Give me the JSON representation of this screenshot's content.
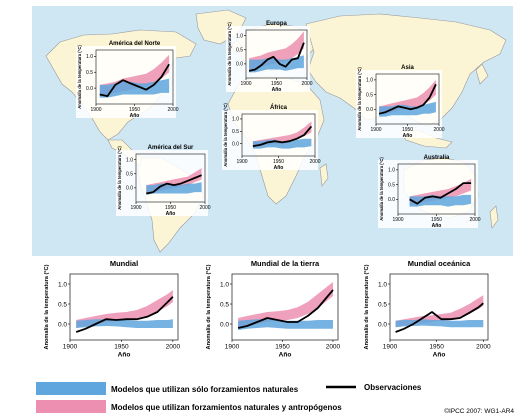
{
  "colors": {
    "ocean": "#cfe6f3",
    "land": "#fbf4d5",
    "land_stroke": "#9a9a9a",
    "panel_bg": "#ffffff",
    "panel_border": "#2f2f2f",
    "natural": "#5ea6dd",
    "anthropogenic": "#ec8fb0",
    "observations": "#000000"
  },
  "legend": {
    "natural_label": "Modelos que utilizan sólo forzamientos naturales",
    "anthro_label": "Modelos que utilizan forzamientos naturales y antropógenos",
    "obs_label": "Observaciones"
  },
  "credit": "©IPCC 2007: WG1-AR4",
  "chart_data": [
    {
      "type": "line",
      "title": "América del Norte",
      "xlabel": "Año",
      "ylabel": "Anomalía de la temperatura (°C)",
      "xlim": [
        1900,
        2000
      ],
      "ylim": [
        -0.5,
        1.2
      ],
      "xticks": [
        1900,
        1950,
        2000
      ],
      "yticks": [
        0.0,
        0.5,
        1.0
      ],
      "x": [
        1905,
        1915,
        1925,
        1935,
        1945,
        1955,
        1965,
        1975,
        1985,
        1995
      ],
      "observations": [
        -0.2,
        -0.25,
        0.1,
        0.25,
        0.15,
        0.05,
        -0.05,
        0.1,
        0.35,
        0.75
      ],
      "natural_band": [
        [
          -0.3,
          0.1
        ],
        [
          -0.3,
          0.1
        ],
        [
          -0.25,
          0.15
        ],
        [
          -0.2,
          0.2
        ],
        [
          -0.2,
          0.2
        ],
        [
          -0.2,
          0.15
        ],
        [
          -0.2,
          0.15
        ],
        [
          -0.2,
          0.2
        ],
        [
          -0.15,
          0.25
        ],
        [
          -0.15,
          0.3
        ]
      ],
      "anthro_band": [
        [
          -0.25,
          0.1
        ],
        [
          -0.2,
          0.15
        ],
        [
          -0.15,
          0.2
        ],
        [
          -0.1,
          0.3
        ],
        [
          -0.05,
          0.35
        ],
        [
          0.0,
          0.4
        ],
        [
          0.05,
          0.45
        ],
        [
          0.15,
          0.6
        ],
        [
          0.3,
          0.8
        ],
        [
          0.5,
          1.05
        ]
      ]
    },
    {
      "type": "line",
      "title": "Europa",
      "xlabel": "Año",
      "ylabel": "Anomalía de la temperatura (°C)",
      "xlim": [
        1900,
        2000
      ],
      "ylim": [
        -0.5,
        1.2
      ],
      "xticks": [
        1900,
        1950,
        2000
      ],
      "yticks": [
        0.0,
        0.5,
        1.0
      ],
      "x": [
        1905,
        1915,
        1925,
        1935,
        1945,
        1955,
        1965,
        1975,
        1985,
        1995
      ],
      "observations": [
        -0.25,
        -0.2,
        -0.05,
        0.15,
        0.25,
        0.0,
        -0.1,
        0.15,
        0.2,
        0.75
      ],
      "natural_band": [
        [
          -0.3,
          0.15
        ],
        [
          -0.3,
          0.15
        ],
        [
          -0.25,
          0.15
        ],
        [
          -0.2,
          0.2
        ],
        [
          -0.2,
          0.2
        ],
        [
          -0.2,
          0.15
        ],
        [
          -0.25,
          0.15
        ],
        [
          -0.2,
          0.2
        ],
        [
          -0.15,
          0.25
        ],
        [
          -0.15,
          0.3
        ]
      ],
      "anthro_band": [
        [
          -0.25,
          0.2
        ],
        [
          -0.2,
          0.25
        ],
        [
          -0.1,
          0.3
        ],
        [
          -0.05,
          0.4
        ],
        [
          0.0,
          0.45
        ],
        [
          0.05,
          0.5
        ],
        [
          0.1,
          0.55
        ],
        [
          0.2,
          0.7
        ],
        [
          0.35,
          0.9
        ],
        [
          0.55,
          1.15
        ]
      ]
    },
    {
      "type": "line",
      "title": "Asia",
      "xlabel": "Año",
      "ylabel": "Anomalía de la temperatura (°C)",
      "xlim": [
        1900,
        2000
      ],
      "ylim": [
        -0.5,
        1.2
      ],
      "xticks": [
        1900,
        1950,
        2000
      ],
      "yticks": [
        0.0,
        0.5,
        1.0
      ],
      "x": [
        1905,
        1915,
        1925,
        1935,
        1945,
        1955,
        1965,
        1975,
        1985,
        1995
      ],
      "observations": [
        -0.15,
        -0.1,
        0.0,
        0.1,
        0.05,
        0.0,
        0.05,
        0.15,
        0.4,
        0.85
      ],
      "natural_band": [
        [
          -0.25,
          0.1
        ],
        [
          -0.25,
          0.1
        ],
        [
          -0.2,
          0.1
        ],
        [
          -0.2,
          0.15
        ],
        [
          -0.2,
          0.15
        ],
        [
          -0.2,
          0.1
        ],
        [
          -0.2,
          0.1
        ],
        [
          -0.15,
          0.15
        ],
        [
          -0.15,
          0.2
        ],
        [
          -0.1,
          0.25
        ]
      ],
      "anthro_band": [
        [
          -0.2,
          0.1
        ],
        [
          -0.15,
          0.15
        ],
        [
          -0.1,
          0.2
        ],
        [
          -0.05,
          0.25
        ],
        [
          0.0,
          0.3
        ],
        [
          0.0,
          0.35
        ],
        [
          0.05,
          0.4
        ],
        [
          0.15,
          0.55
        ],
        [
          0.3,
          0.75
        ],
        [
          0.5,
          1.0
        ]
      ]
    },
    {
      "type": "line",
      "title": "África",
      "xlabel": "Año",
      "ylabel": "Anomalía de la temperatura (°C)",
      "xlim": [
        1900,
        2000
      ],
      "ylim": [
        -0.5,
        1.2
      ],
      "xticks": [
        1900,
        1950,
        2000
      ],
      "yticks": [
        0.0,
        0.5,
        1.0
      ],
      "x": [
        1915,
        1925,
        1935,
        1945,
        1955,
        1965,
        1975,
        1985,
        1995
      ],
      "observations": [
        -0.1,
        -0.05,
        0.05,
        0.1,
        0.05,
        0.1,
        0.2,
        0.35,
        0.7
      ],
      "natural_band": [
        [
          -0.2,
          0.1
        ],
        [
          -0.2,
          0.1
        ],
        [
          -0.15,
          0.15
        ],
        [
          -0.15,
          0.15
        ],
        [
          -0.2,
          0.1
        ],
        [
          -0.2,
          0.1
        ],
        [
          -0.15,
          0.15
        ],
        [
          -0.15,
          0.2
        ],
        [
          -0.1,
          0.2
        ]
      ],
      "anthro_band": [
        [
          -0.15,
          0.1
        ],
        [
          -0.1,
          0.15
        ],
        [
          -0.05,
          0.2
        ],
        [
          0.0,
          0.25
        ],
        [
          0.0,
          0.3
        ],
        [
          0.05,
          0.35
        ],
        [
          0.15,
          0.45
        ],
        [
          0.3,
          0.65
        ],
        [
          0.45,
          0.9
        ]
      ]
    },
    {
      "type": "line",
      "title": "América del Sur",
      "xlabel": "Año",
      "ylabel": "Anomalía de la temperatura (°C)",
      "xlim": [
        1900,
        2000
      ],
      "ylim": [
        -0.5,
        1.2
      ],
      "xticks": [
        1900,
        1950,
        2000
      ],
      "yticks": [
        0.0,
        0.5,
        1.0
      ],
      "x": [
        1915,
        1925,
        1935,
        1945,
        1955,
        1965,
        1975,
        1985,
        1995
      ],
      "observations": [
        -0.2,
        -0.15,
        0.05,
        0.15,
        0.1,
        0.15,
        0.25,
        0.35,
        0.45
      ],
      "natural_band": [
        [
          -0.25,
          0.1
        ],
        [
          -0.2,
          0.1
        ],
        [
          -0.2,
          0.15
        ],
        [
          -0.2,
          0.15
        ],
        [
          -0.2,
          0.1
        ],
        [
          -0.2,
          0.1
        ],
        [
          -0.2,
          0.15
        ],
        [
          -0.15,
          0.15
        ],
        [
          -0.15,
          0.2
        ]
      ],
      "anthro_band": [
        [
          -0.2,
          0.1
        ],
        [
          -0.15,
          0.15
        ],
        [
          -0.1,
          0.2
        ],
        [
          -0.05,
          0.25
        ],
        [
          0.0,
          0.3
        ],
        [
          0.05,
          0.35
        ],
        [
          0.1,
          0.4
        ],
        [
          0.2,
          0.55
        ],
        [
          0.3,
          0.7
        ]
      ]
    },
    {
      "type": "line",
      "title": "Australia",
      "xlabel": "Año",
      "ylabel": "Anomalía de la temperatura (°C)",
      "xlim": [
        1900,
        2000
      ],
      "ylim": [
        -0.5,
        1.2
      ],
      "xticks": [
        1900,
        1950,
        2000
      ],
      "yticks": [
        0.0,
        0.5,
        1.0
      ],
      "x": [
        1915,
        1925,
        1935,
        1945,
        1955,
        1965,
        1975,
        1985,
        1995
      ],
      "observations": [
        0.0,
        -0.15,
        0.05,
        0.1,
        0.05,
        0.2,
        0.35,
        0.55,
        0.55
      ],
      "natural_band": [
        [
          -0.25,
          0.1
        ],
        [
          -0.25,
          0.1
        ],
        [
          -0.2,
          0.1
        ],
        [
          -0.2,
          0.15
        ],
        [
          -0.2,
          0.1
        ],
        [
          -0.25,
          0.1
        ],
        [
          -0.2,
          0.1
        ],
        [
          -0.2,
          0.15
        ],
        [
          -0.15,
          0.15
        ]
      ],
      "anthro_band": [
        [
          -0.2,
          0.1
        ],
        [
          -0.15,
          0.15
        ],
        [
          -0.1,
          0.2
        ],
        [
          -0.05,
          0.25
        ],
        [
          0.0,
          0.3
        ],
        [
          0.05,
          0.35
        ],
        [
          0.1,
          0.45
        ],
        [
          0.2,
          0.55
        ],
        [
          0.3,
          0.7
        ]
      ]
    },
    {
      "type": "line",
      "title": "Mundial",
      "xlabel": "Año",
      "ylabel": "Anomalía de la temperatura (°C)",
      "xlim": [
        1900,
        2005
      ],
      "ylim": [
        -0.4,
        1.25
      ],
      "xticks": [
        1900,
        1950,
        2000
      ],
      "yticks": [
        0.0,
        0.5,
        1.0
      ],
      "x": [
        1906,
        1915,
        1925,
        1935,
        1945,
        1955,
        1965,
        1975,
        1985,
        1995,
        2000
      ],
      "observations": [
        -0.2,
        -0.12,
        0.0,
        0.12,
        0.1,
        0.12,
        0.12,
        0.18,
        0.3,
        0.55,
        0.68
      ],
      "natural_band": [
        [
          -0.1,
          0.08
        ],
        [
          -0.08,
          0.1
        ],
        [
          -0.06,
          0.12
        ],
        [
          -0.05,
          0.12
        ],
        [
          -0.06,
          0.1
        ],
        [
          -0.08,
          0.1
        ],
        [
          -0.1,
          0.08
        ],
        [
          -0.1,
          0.08
        ],
        [
          -0.1,
          0.1
        ],
        [
          -0.1,
          0.1
        ],
        [
          -0.1,
          0.12
        ]
      ],
      "anthro_band": [
        [
          -0.1,
          0.1
        ],
        [
          -0.05,
          0.15
        ],
        [
          0.0,
          0.2
        ],
        [
          0.05,
          0.25
        ],
        [
          0.08,
          0.28
        ],
        [
          0.1,
          0.3
        ],
        [
          0.12,
          0.35
        ],
        [
          0.2,
          0.45
        ],
        [
          0.3,
          0.6
        ],
        [
          0.45,
          0.75
        ],
        [
          0.55,
          0.85
        ]
      ]
    },
    {
      "type": "line",
      "title": "Mundial de la tierra",
      "xlabel": "Año",
      "ylabel": "Anomalía de la temperatura (°C)",
      "xlim": [
        1900,
        2005
      ],
      "ylim": [
        -0.4,
        1.25
      ],
      "xticks": [
        1900,
        1950,
        2000
      ],
      "yticks": [
        0.0,
        0.5,
        1.0
      ],
      "x": [
        1906,
        1915,
        1925,
        1935,
        1945,
        1955,
        1965,
        1975,
        1985,
        1995,
        2000
      ],
      "observations": [
        -0.1,
        -0.05,
        0.05,
        0.15,
        0.1,
        0.05,
        0.05,
        0.2,
        0.4,
        0.7,
        0.85
      ],
      "natural_band": [
        [
          -0.15,
          0.08
        ],
        [
          -0.12,
          0.1
        ],
        [
          -0.1,
          0.12
        ],
        [
          -0.08,
          0.12
        ],
        [
          -0.1,
          0.1
        ],
        [
          -0.12,
          0.08
        ],
        [
          -0.12,
          0.08
        ],
        [
          -0.12,
          0.08
        ],
        [
          -0.12,
          0.1
        ],
        [
          -0.12,
          0.1
        ],
        [
          -0.12,
          0.1
        ]
      ],
      "anthro_band": [
        [
          -0.1,
          0.15
        ],
        [
          -0.05,
          0.2
        ],
        [
          0.0,
          0.25
        ],
        [
          0.05,
          0.3
        ],
        [
          0.08,
          0.32
        ],
        [
          0.1,
          0.35
        ],
        [
          0.15,
          0.42
        ],
        [
          0.25,
          0.55
        ],
        [
          0.4,
          0.75
        ],
        [
          0.6,
          0.95
        ],
        [
          0.7,
          1.05
        ]
      ]
    },
    {
      "type": "line",
      "title": "Mundial oceánica",
      "xlabel": "Año",
      "ylabel": "Anomalía de la temperatura (°C)",
      "xlim": [
        1900,
        2005
      ],
      "ylim": [
        -0.4,
        1.25
      ],
      "xticks": [
        1900,
        1950,
        2000
      ],
      "yticks": [
        0.0,
        0.5,
        1.0
      ],
      "x": [
        1906,
        1915,
        1925,
        1935,
        1945,
        1955,
        1965,
        1975,
        1985,
        1995,
        2000
      ],
      "observations": [
        -0.2,
        -0.12,
        0.0,
        0.15,
        0.3,
        0.12,
        0.12,
        0.15,
        0.28,
        0.42,
        0.52
      ],
      "natural_band": [
        [
          -0.08,
          0.08
        ],
        [
          -0.06,
          0.1
        ],
        [
          -0.05,
          0.1
        ],
        [
          -0.04,
          0.12
        ],
        [
          -0.05,
          0.1
        ],
        [
          -0.06,
          0.1
        ],
        [
          -0.08,
          0.08
        ],
        [
          -0.08,
          0.08
        ],
        [
          -0.08,
          0.1
        ],
        [
          -0.08,
          0.1
        ],
        [
          -0.08,
          0.1
        ]
      ],
      "anthro_band": [
        [
          -0.08,
          0.08
        ],
        [
          -0.04,
          0.12
        ],
        [
          0.0,
          0.16
        ],
        [
          0.02,
          0.2
        ],
        [
          0.05,
          0.22
        ],
        [
          0.08,
          0.25
        ],
        [
          0.1,
          0.28
        ],
        [
          0.15,
          0.38
        ],
        [
          0.25,
          0.5
        ],
        [
          0.38,
          0.65
        ],
        [
          0.45,
          0.72
        ]
      ]
    }
  ]
}
